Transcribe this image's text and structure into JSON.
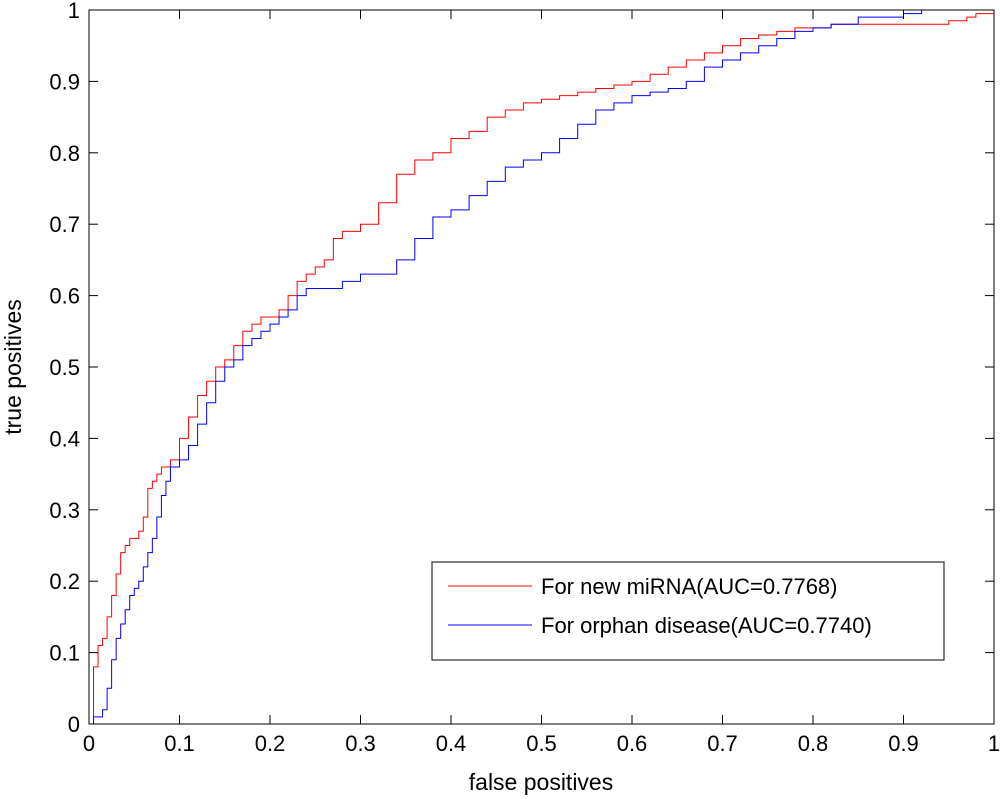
{
  "chart_data": {
    "type": "line",
    "title": "",
    "xlabel": "false positives",
    "ylabel": "true positives",
    "xlim": [
      0,
      1
    ],
    "ylim": [
      0,
      1
    ],
    "grid": false,
    "legend_position": "bottom-right",
    "xticks": [
      "0",
      "0.1",
      "0.2",
      "0.3",
      "0.4",
      "0.5",
      "0.6",
      "0.7",
      "0.8",
      "0.9",
      "1"
    ],
    "yticks": [
      "0",
      "0.1",
      "0.2",
      "0.3",
      "0.4",
      "0.5",
      "0.6",
      "0.7",
      "0.8",
      "0.9",
      "1"
    ],
    "series": [
      {
        "name": "For new miRNA(AUC=0.7768)",
        "color": "#ff0000",
        "x": [
          0,
          0.005,
          0.01,
          0.015,
          0.02,
          0.025,
          0.03,
          0.035,
          0.04,
          0.045,
          0.05,
          0.055,
          0.06,
          0.065,
          0.07,
          0.075,
          0.08,
          0.085,
          0.09,
          0.1,
          0.11,
          0.12,
          0.13,
          0.14,
          0.15,
          0.16,
          0.17,
          0.18,
          0.19,
          0.2,
          0.21,
          0.22,
          0.23,
          0.24,
          0.25,
          0.26,
          0.27,
          0.28,
          0.29,
          0.3,
          0.32,
          0.34,
          0.36,
          0.38,
          0.4,
          0.42,
          0.44,
          0.46,
          0.48,
          0.5,
          0.52,
          0.54,
          0.56,
          0.58,
          0.6,
          0.62,
          0.64,
          0.66,
          0.68,
          0.7,
          0.72,
          0.74,
          0.76,
          0.78,
          0.8,
          0.82,
          0.85,
          0.88,
          0.9,
          0.92,
          0.95,
          0.97,
          0.98,
          1
        ],
        "y": [
          0,
          0.08,
          0.11,
          0.12,
          0.15,
          0.18,
          0.21,
          0.24,
          0.25,
          0.26,
          0.26,
          0.27,
          0.29,
          0.33,
          0.34,
          0.35,
          0.36,
          0.36,
          0.37,
          0.4,
          0.43,
          0.46,
          0.48,
          0.5,
          0.51,
          0.53,
          0.55,
          0.56,
          0.57,
          0.57,
          0.58,
          0.6,
          0.62,
          0.63,
          0.64,
          0.65,
          0.68,
          0.69,
          0.69,
          0.7,
          0.73,
          0.77,
          0.79,
          0.8,
          0.82,
          0.83,
          0.85,
          0.86,
          0.87,
          0.875,
          0.88,
          0.885,
          0.89,
          0.895,
          0.9,
          0.91,
          0.92,
          0.93,
          0.94,
          0.95,
          0.96,
          0.965,
          0.97,
          0.975,
          0.975,
          0.98,
          0.98,
          0.98,
          0.98,
          0.98,
          0.985,
          0.99,
          0.995,
          1
        ]
      },
      {
        "name": "For orphan disease(AUC=0.7740)",
        "color": "#0000ff",
        "x": [
          0,
          0.005,
          0.01,
          0.015,
          0.02,
          0.025,
          0.03,
          0.035,
          0.04,
          0.045,
          0.05,
          0.055,
          0.06,
          0.065,
          0.07,
          0.075,
          0.08,
          0.085,
          0.09,
          0.1,
          0.11,
          0.12,
          0.13,
          0.14,
          0.15,
          0.16,
          0.17,
          0.18,
          0.19,
          0.2,
          0.21,
          0.22,
          0.23,
          0.24,
          0.25,
          0.26,
          0.27,
          0.28,
          0.29,
          0.3,
          0.32,
          0.34,
          0.36,
          0.38,
          0.4,
          0.42,
          0.44,
          0.46,
          0.48,
          0.5,
          0.52,
          0.54,
          0.56,
          0.58,
          0.6,
          0.62,
          0.64,
          0.66,
          0.68,
          0.7,
          0.72,
          0.74,
          0.76,
          0.78,
          0.8,
          0.82,
          0.85,
          0.88,
          0.9,
          0.92,
          0.95,
          0.97,
          0.98,
          1
        ],
        "y": [
          0,
          0.01,
          0.01,
          0.02,
          0.05,
          0.09,
          0.12,
          0.14,
          0.16,
          0.18,
          0.19,
          0.2,
          0.22,
          0.24,
          0.26,
          0.29,
          0.32,
          0.34,
          0.36,
          0.37,
          0.39,
          0.42,
          0.45,
          0.48,
          0.5,
          0.51,
          0.53,
          0.54,
          0.55,
          0.56,
          0.57,
          0.58,
          0.6,
          0.61,
          0.61,
          0.61,
          0.61,
          0.62,
          0.62,
          0.63,
          0.63,
          0.65,
          0.68,
          0.71,
          0.72,
          0.74,
          0.76,
          0.78,
          0.79,
          0.8,
          0.82,
          0.84,
          0.86,
          0.87,
          0.88,
          0.885,
          0.89,
          0.9,
          0.92,
          0.93,
          0.94,
          0.95,
          0.96,
          0.97,
          0.975,
          0.98,
          0.99,
          0.99,
          0.995,
          1,
          1,
          1,
          1,
          1
        ]
      }
    ]
  }
}
